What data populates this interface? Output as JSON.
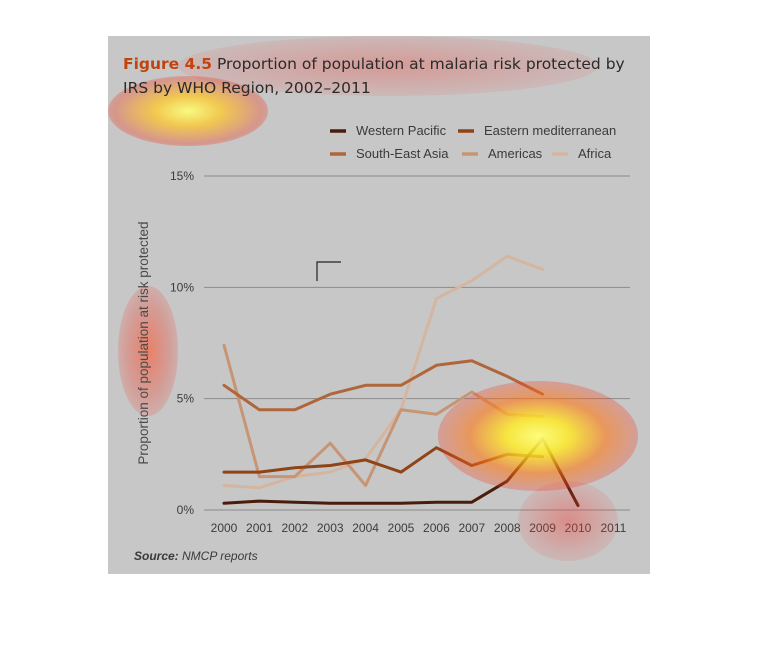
{
  "figure": {
    "number": "Figure 4.5",
    "title": "Proportion of population at malaria risk protected by IRS by WHO Region, 2002–2011",
    "source_label": "Source:",
    "source_text": "NMCP reports"
  },
  "chart_data": {
    "type": "line",
    "ylabel": "Proportion of population at risk protected",
    "xlabel": "",
    "x": [
      "2000",
      "2001",
      "2002",
      "2003",
      "2004",
      "2005",
      "2006",
      "2007",
      "2008",
      "2009",
      "2010",
      "2011"
    ],
    "ylim": [
      0,
      15
    ],
    "yticks": [
      0,
      5,
      10,
      15
    ],
    "ytick_labels": [
      "0%",
      "5%",
      "10%",
      "15%"
    ],
    "grid": true,
    "legend_position": "top",
    "series": [
      {
        "name": "Western Pacific",
        "color": "#4a1c0a",
        "values": [
          0.3,
          0.4,
          0.35,
          0.3,
          0.3,
          0.3,
          0.35,
          0.35,
          1.3,
          3.2,
          0.2,
          null
        ]
      },
      {
        "name": "Eastern mediterranean",
        "color": "#8f4317",
        "values": [
          1.7,
          1.7,
          1.9,
          2.0,
          2.25,
          1.7,
          2.8,
          2.0,
          2.5,
          2.4,
          null,
          null
        ]
      },
      {
        "name": "South-East Asia",
        "color": "#b0663b",
        "values": [
          5.6,
          4.5,
          4.5,
          5.2,
          5.6,
          5.6,
          6.5,
          6.7,
          6.0,
          5.2,
          null,
          null
        ]
      },
      {
        "name": "Americas",
        "color": "#c79574",
        "values": [
          7.4,
          1.5,
          1.5,
          3.0,
          1.1,
          4.5,
          4.3,
          5.3,
          4.3,
          4.2,
          null,
          null
        ]
      },
      {
        "name": "Africa",
        "color": "#d4b6a0",
        "values": [
          1.1,
          1.0,
          1.5,
          1.7,
          2.3,
          4.5,
          9.5,
          10.3,
          11.4,
          10.8,
          null,
          null
        ]
      }
    ]
  }
}
